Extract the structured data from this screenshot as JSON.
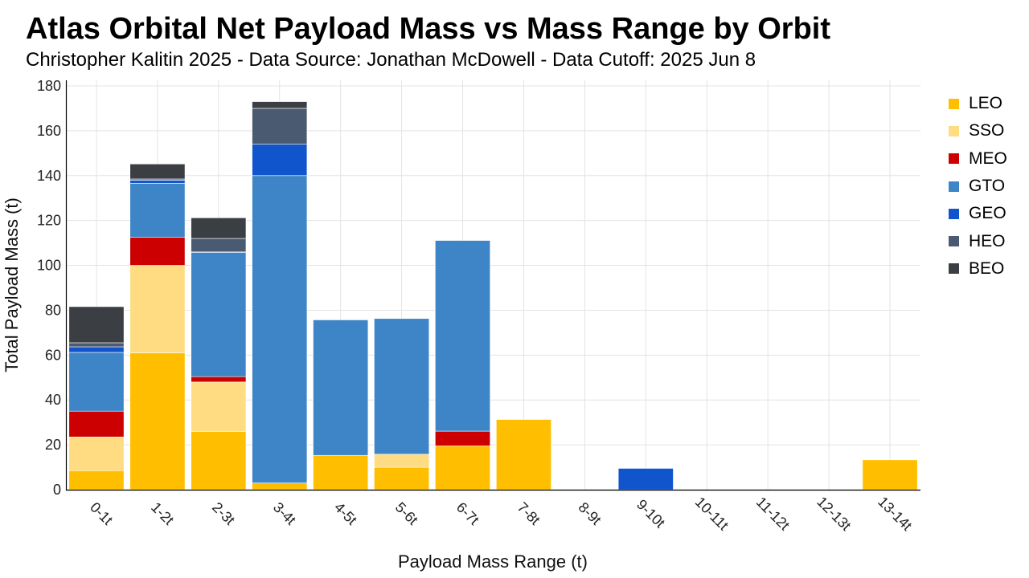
{
  "header": {
    "title": "Atlas Orbital Net Payload Mass vs Mass Range by Orbit",
    "subtitle": "Christopher Kalitin 2025 - Data Source: Jonathan McDowell - Data Cutoff: 2025 Jun 8"
  },
  "chart_data": {
    "type": "bar",
    "stacked": true,
    "title": "Atlas Orbital Net Payload Mass vs Mass Range by Orbit",
    "subtitle": "Christopher Kalitin 2025 - Data Source: Jonathan McDowell - Data Cutoff: 2025 Jun 8",
    "xlabel": "Payload Mass Range (t)",
    "ylabel": "Total Payload Mass (t)",
    "ylim": [
      0,
      180
    ],
    "yticks": [
      0,
      20,
      40,
      60,
      80,
      100,
      120,
      140,
      160,
      180
    ],
    "grid": true,
    "legend_position": "right",
    "categories": [
      "0-1t",
      "1-2t",
      "2-3t",
      "3-4t",
      "4-5t",
      "5-6t",
      "6-7t",
      "7-8t",
      "8-9t",
      "9-10t",
      "10-11t",
      "11-12t",
      "12-13t",
      "13-14t"
    ],
    "series": [
      {
        "name": "LEO",
        "color": "#FFBF00",
        "values": [
          8.5,
          61,
          26,
          3,
          15.3,
          10,
          19.5,
          31.3,
          0,
          0,
          0,
          0,
          0,
          13.3
        ]
      },
      {
        "name": "SSO",
        "color": "#FFDC82",
        "values": [
          15,
          39,
          22,
          0,
          0,
          5.8,
          0,
          0,
          0,
          0,
          0,
          0,
          0,
          0
        ]
      },
      {
        "name": "MEO",
        "color": "#CC0000",
        "values": [
          11.5,
          12.6,
          2.4,
          0,
          0,
          0,
          6.6,
          0,
          0,
          0,
          0,
          0,
          0,
          0
        ]
      },
      {
        "name": "GTO",
        "color": "#3D85C6",
        "values": [
          26.2,
          24,
          55.3,
          137,
          60.4,
          60.5,
          85,
          0,
          0,
          0,
          0,
          0,
          0,
          0
        ]
      },
      {
        "name": "GEO",
        "color": "#1155CC",
        "values": [
          2.5,
          1.4,
          0.3,
          14,
          0,
          0,
          0,
          0,
          0,
          9.5,
          0,
          0,
          0,
          0
        ]
      },
      {
        "name": "HEO",
        "color": "#4A5A70",
        "values": [
          1.8,
          0.5,
          6,
          16,
          0,
          0,
          0,
          0,
          0,
          0,
          0,
          0,
          0,
          0
        ]
      },
      {
        "name": "BEO",
        "color": "#3B3F44",
        "values": [
          16.1,
          6.7,
          9.2,
          3,
          0,
          0,
          0,
          0,
          0,
          0,
          0,
          0,
          0,
          0
        ]
      }
    ]
  }
}
